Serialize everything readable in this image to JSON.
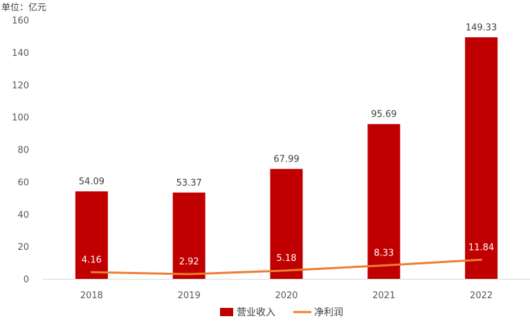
{
  "chart_data": {
    "type": "bar",
    "unit_label": "单位：亿元",
    "categories": [
      "2018",
      "2019",
      "2020",
      "2021",
      "2022"
    ],
    "series": [
      {
        "name": "营业收入",
        "type": "bar",
        "values": [
          54.09,
          53.37,
          67.99,
          95.69,
          149.33
        ],
        "labels": [
          "54.09",
          "53.37",
          "67.99",
          "95.69",
          "149.33"
        ]
      },
      {
        "name": "净利润",
        "type": "line",
        "values": [
          4.16,
          2.92,
          5.18,
          8.33,
          11.84
        ],
        "labels": [
          "4.16",
          "2.92",
          "5.18",
          "8.33",
          "11.84"
        ]
      }
    ],
    "y_ticks": [
      "0",
      "20",
      "40",
      "60",
      "80",
      "100",
      "120",
      "140",
      "160"
    ],
    "ylim": [
      0,
      160
    ],
    "grid": false,
    "legend_position": "bottom",
    "colors": {
      "bar": "#c00000",
      "line": "#ed7d31",
      "axis": "#d9d9d9"
    }
  }
}
